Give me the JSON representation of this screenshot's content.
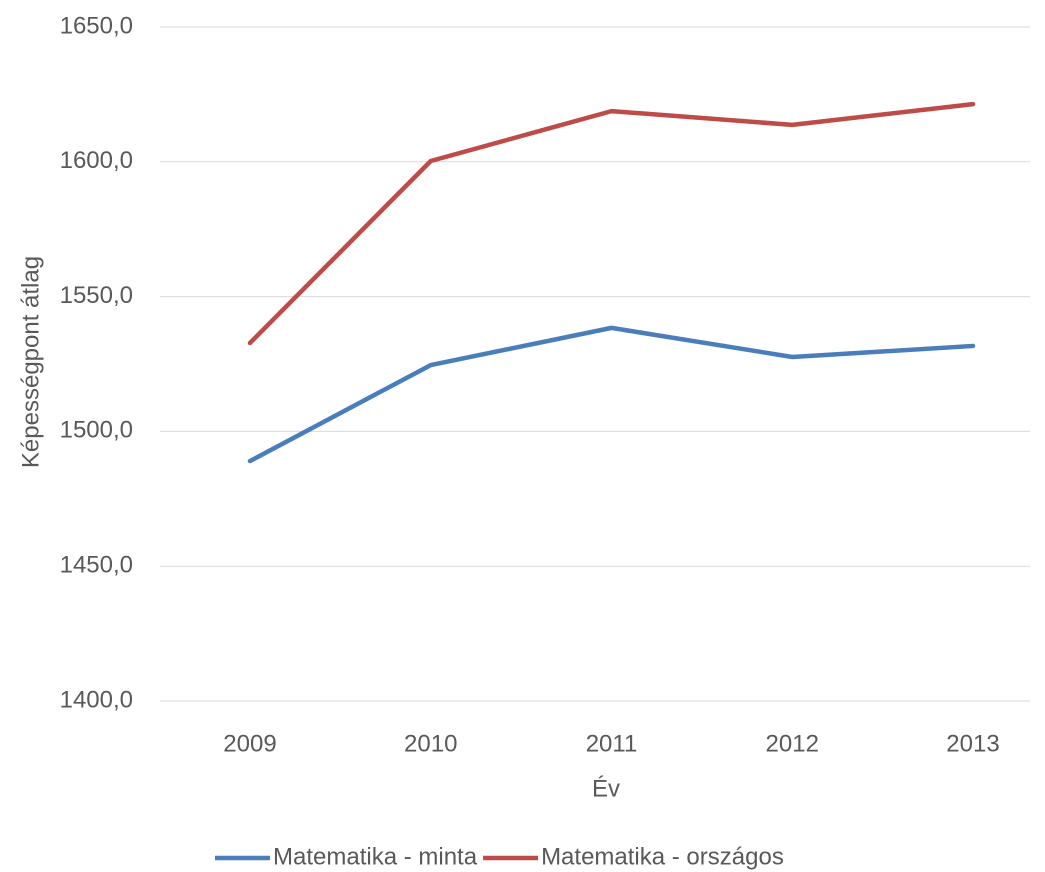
{
  "chart_data": {
    "type": "line",
    "x_label": "Év",
    "y_label": "Képességpont átlag",
    "categories": [
      "2009",
      "2010",
      "2011",
      "2012",
      "2013"
    ],
    "series": [
      {
        "name": "Matematika - minta",
        "color": "#4a7ebb",
        "values": [
          1489.0,
          1524.6,
          1538.4,
          1527.6,
          1531.7
        ]
      },
      {
        "name": "Matematika - országos",
        "color": "#be4b48",
        "values": [
          1532.8,
          1600.3,
          1618.8,
          1613.7,
          1621.4
        ]
      }
    ],
    "ylim": [
      1400,
      1650
    ],
    "yticks": [
      {
        "value": 1400,
        "label": "1400,0"
      },
      {
        "value": 1450,
        "label": "1450,0"
      },
      {
        "value": 1500,
        "label": "1500,0"
      },
      {
        "value": 1550,
        "label": "1550,0"
      },
      {
        "value": 1600,
        "label": "1600,0"
      },
      {
        "value": 1650,
        "label": "1650,0"
      }
    ],
    "grid": true,
    "legend": "bottom"
  }
}
